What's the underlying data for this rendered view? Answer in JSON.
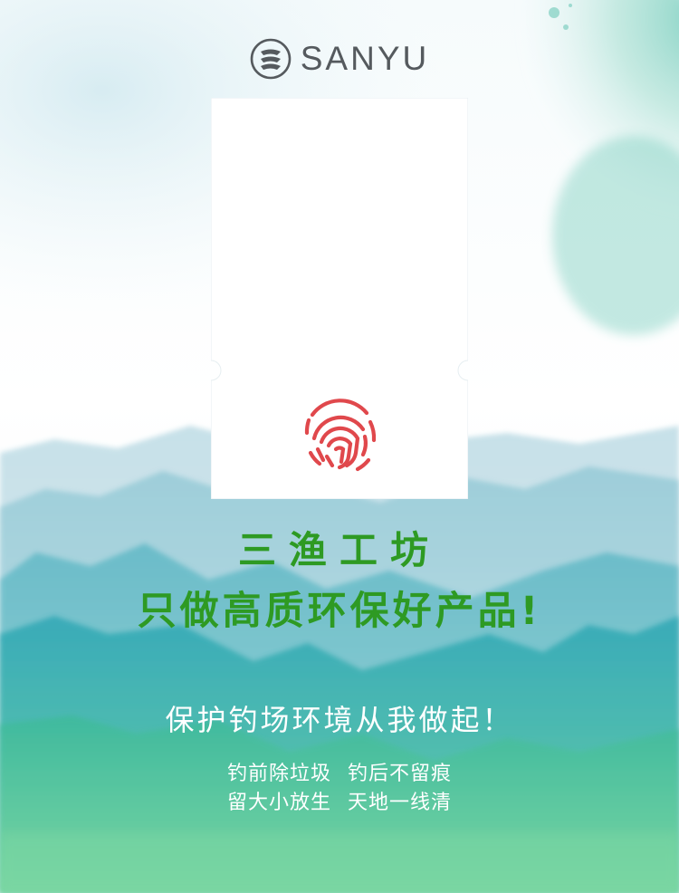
{
  "brand": {
    "name": "SANYU"
  },
  "headline": {
    "title": "三渔工坊",
    "subtitle": "只做高质环保好产品!"
  },
  "slogan": {
    "main": "保护钓场环境从我做起！",
    "line_a_left": "钓前除垃圾",
    "line_a_right": "钓后不留痕",
    "line_b_left": "留大小放生",
    "line_b_right": "天地一线清"
  },
  "colors": {
    "accent_green": "#2e9a23",
    "logo_gray": "#555a5e",
    "fingerprint_red": "#e0484c"
  },
  "icons": {
    "logo": "sanyu-logo-icon",
    "fingerprint": "fingerprint-icon"
  }
}
